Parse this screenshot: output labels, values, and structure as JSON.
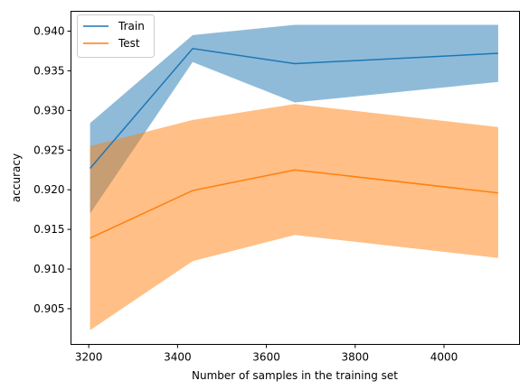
{
  "chart_data": {
    "type": "line",
    "title": "",
    "xlabel": "Number of samples in the training set",
    "ylabel": "accuracy",
    "xlim": [
      3160,
      4170
    ],
    "ylim": [
      0.9005,
      0.9425
    ],
    "x_ticks": [
      3200,
      3400,
      3600,
      3800,
      4000
    ],
    "y_ticks": [
      0.905,
      0.91,
      0.915,
      0.92,
      0.925,
      0.93,
      0.935,
      0.94
    ],
    "y_tick_labels": [
      "0.905",
      "0.910",
      "0.915",
      "0.920",
      "0.925",
      "0.930",
      "0.935",
      "0.940"
    ],
    "grid": false,
    "legend_position": "upper-left",
    "x": [
      3203,
      3434,
      3664,
      4122
    ],
    "series": [
      {
        "name": "Train",
        "color": "#1f77b4",
        "band_color": "#1f77b4",
        "values": [
          0.9227,
          0.9378,
          0.9359,
          0.9372
        ],
        "upper": [
          0.9284,
          0.9395,
          0.9408,
          0.9408
        ],
        "lower": [
          0.917,
          0.9361,
          0.931,
          0.9336
        ]
      },
      {
        "name": "Test",
        "color": "#ff7f0e",
        "band_color": "#ff7f0e",
        "values": [
          0.9139,
          0.9199,
          0.9225,
          0.9196
        ],
        "upper": [
          0.9255,
          0.9288,
          0.9308,
          0.9279
        ],
        "lower": [
          0.9023,
          0.911,
          0.9143,
          0.9114
        ]
      }
    ]
  }
}
